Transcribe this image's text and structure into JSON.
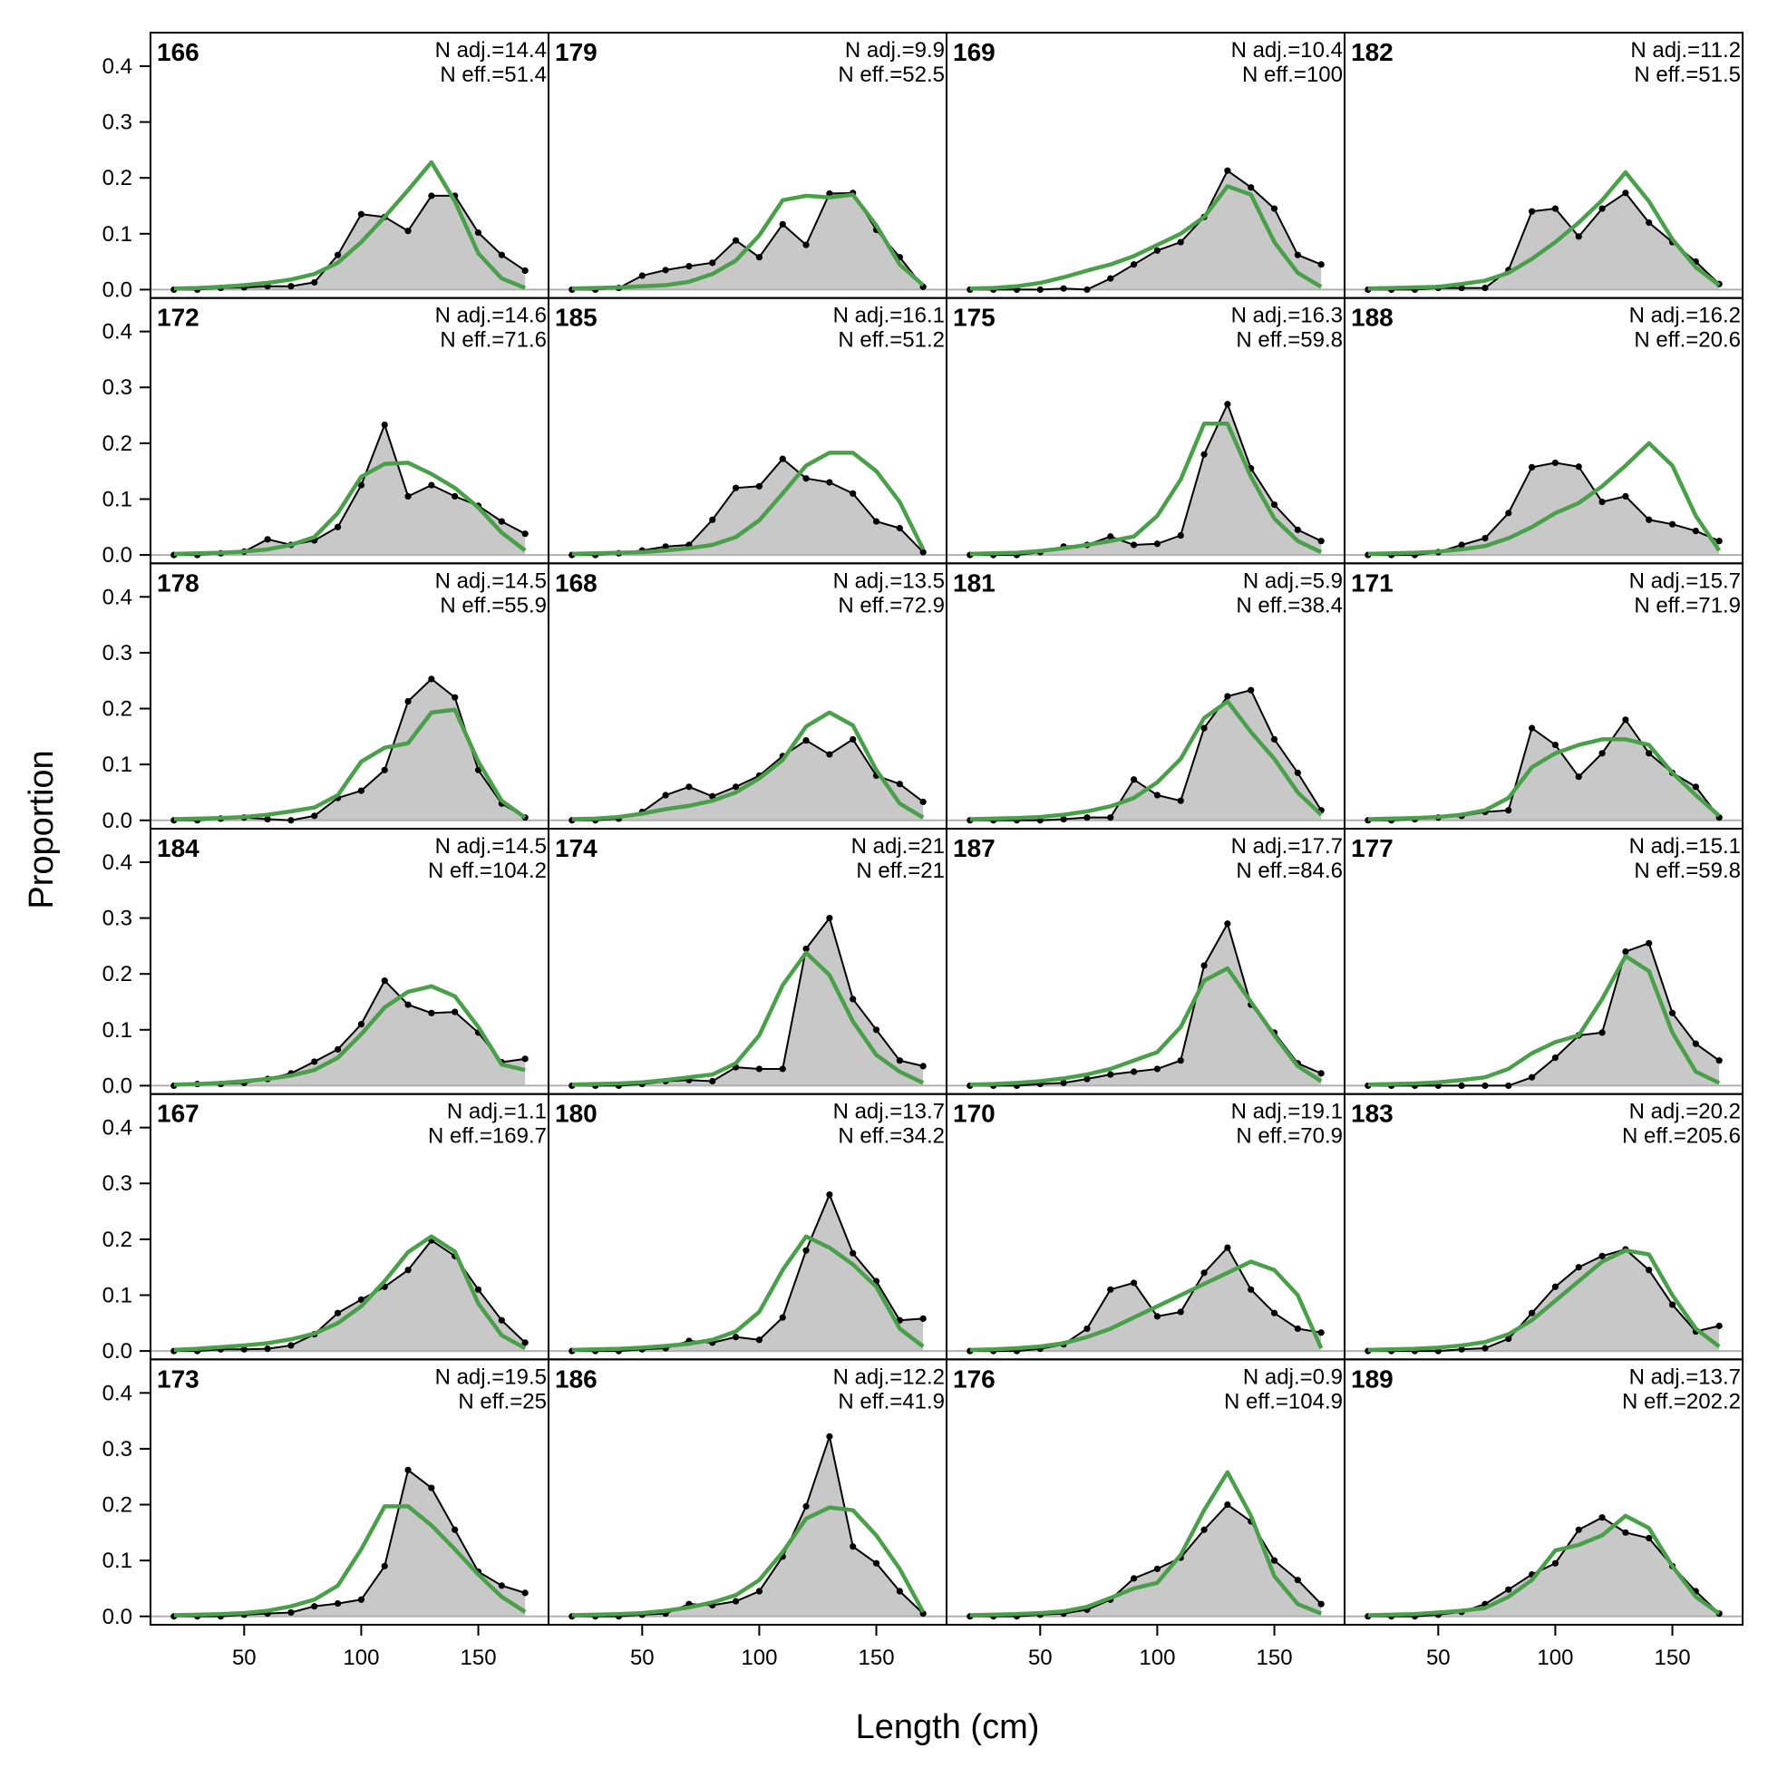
{
  "chart_data": {
    "type": "area",
    "xlabel": "Length (cm)",
    "ylabel": "Proportion",
    "xlim": [
      10,
      180
    ],
    "ylim": [
      -0.015,
      0.46
    ],
    "x_ticks": [
      50,
      100,
      150
    ],
    "y_ticks": [
      0.0,
      0.1,
      0.2,
      0.3,
      0.4
    ],
    "y_tick_labels": [
      "0.0",
      "0.1",
      "0.2",
      "0.3",
      "0.4"
    ],
    "x": [
      20,
      30,
      40,
      50,
      60,
      70,
      80,
      90,
      100,
      110,
      120,
      130,
      140,
      150,
      160,
      170
    ],
    "colors": {
      "observed_fill": "#c8c8c8",
      "observed_line": "#000000",
      "expected_line": "#4aa04a",
      "zero_line": "#b0b0b0"
    },
    "panels": [
      {
        "label": "166",
        "n_adj": "N adj.=14.4",
        "n_eff": "N eff.=51.4",
        "observed": [
          0,
          0,
          0.003,
          0.004,
          0.006,
          0.006,
          0.013,
          0.062,
          0.135,
          0.13,
          0.105,
          0.168,
          0.168,
          0.102,
          0.062,
          0.034
        ],
        "expected": [
          0.002,
          0.003,
          0.005,
          0.008,
          0.012,
          0.018,
          0.028,
          0.048,
          0.085,
          0.13,
          0.178,
          0.228,
          0.158,
          0.065,
          0.02,
          0.003
        ]
      },
      {
        "label": "172",
        "n_adj": "N adj.=14.6",
        "n_eff": "N eff.=71.6",
        "observed": [
          0,
          0,
          0.003,
          0.006,
          0.028,
          0.018,
          0.026,
          0.05,
          0.125,
          0.233,
          0.105,
          0.125,
          0.105,
          0.088,
          0.06,
          0.038
        ],
        "expected": [
          0.002,
          0.003,
          0.004,
          0.006,
          0.01,
          0.018,
          0.032,
          0.075,
          0.14,
          0.163,
          0.165,
          0.145,
          0.12,
          0.085,
          0.04,
          0.008
        ]
      },
      {
        "label": "178",
        "n_adj": "N adj.=14.5",
        "n_eff": "N eff.=55.9",
        "observed": [
          0,
          0,
          0.003,
          0.005,
          0.002,
          0,
          0.008,
          0.04,
          0.053,
          0.09,
          0.213,
          0.253,
          0.22,
          0.09,
          0.03,
          0.005
        ],
        "expected": [
          0.002,
          0.003,
          0.004,
          0.006,
          0.01,
          0.016,
          0.023,
          0.045,
          0.105,
          0.13,
          0.138,
          0.193,
          0.198,
          0.105,
          0.035,
          0.005
        ]
      },
      {
        "label": "184",
        "n_adj": "N adj.=14.5",
        "n_eff": "N eff.=104.2",
        "observed": [
          0,
          0.003,
          0.003,
          0.005,
          0.012,
          0.022,
          0.043,
          0.065,
          0.11,
          0.188,
          0.145,
          0.13,
          0.132,
          0.095,
          0.042,
          0.048
        ],
        "expected": [
          0.002,
          0.003,
          0.005,
          0.008,
          0.012,
          0.018,
          0.028,
          0.05,
          0.092,
          0.14,
          0.168,
          0.178,
          0.16,
          0.105,
          0.038,
          0.028
        ]
      },
      {
        "label": "167",
        "n_adj": "N adj.=1.1",
        "n_eff": "N eff.=169.7",
        "observed": [
          0,
          0,
          0.003,
          0.003,
          0.004,
          0.01,
          0.03,
          0.068,
          0.092,
          0.115,
          0.145,
          0.198,
          0.17,
          0.11,
          0.055,
          0.015
        ],
        "expected": [
          0.002,
          0.004,
          0.007,
          0.01,
          0.014,
          0.021,
          0.031,
          0.05,
          0.08,
          0.125,
          0.177,
          0.205,
          0.178,
          0.085,
          0.028,
          0.005
        ]
      },
      {
        "label": "173",
        "n_adj": "N adj.=19.5",
        "n_eff": "N eff.=25",
        "observed": [
          0,
          0,
          0,
          0.003,
          0.005,
          0.007,
          0.018,
          0.023,
          0.03,
          0.09,
          0.262,
          0.23,
          0.155,
          0.08,
          0.055,
          0.042
        ],
        "expected": [
          0.002,
          0.003,
          0.004,
          0.006,
          0.01,
          0.018,
          0.03,
          0.055,
          0.12,
          0.197,
          0.197,
          0.163,
          0.12,
          0.075,
          0.035,
          0.008
        ]
      },
      {
        "label": "179",
        "n_adj": "N adj.=9.9",
        "n_eff": "N eff.=52.5",
        "observed": [
          0,
          0,
          0.003,
          0.025,
          0.035,
          0.042,
          0.048,
          0.088,
          0.058,
          0.117,
          0.08,
          0.172,
          0.173,
          0.107,
          0.058,
          0.005
        ],
        "expected": [
          0.002,
          0.003,
          0.004,
          0.006,
          0.008,
          0.014,
          0.028,
          0.052,
          0.097,
          0.16,
          0.168,
          0.165,
          0.17,
          0.115,
          0.045,
          0.008
        ]
      },
      {
        "label": "185",
        "n_adj": "N adj.=16.1",
        "n_eff": "N eff.=51.2",
        "observed": [
          0,
          0,
          0.003,
          0.008,
          0.015,
          0.018,
          0.063,
          0.12,
          0.123,
          0.172,
          0.137,
          0.13,
          0.11,
          0.06,
          0.048,
          0.005
        ],
        "expected": [
          0.002,
          0.003,
          0.004,
          0.005,
          0.008,
          0.012,
          0.018,
          0.032,
          0.062,
          0.11,
          0.16,
          0.183,
          0.183,
          0.15,
          0.095,
          0.01
        ]
      },
      {
        "label": "168",
        "n_adj": "N adj.=13.5",
        "n_eff": "N eff.=72.9",
        "observed": [
          0,
          0,
          0.003,
          0.015,
          0.045,
          0.06,
          0.043,
          0.06,
          0.08,
          0.115,
          0.143,
          0.118,
          0.145,
          0.08,
          0.065,
          0.033
        ],
        "expected": [
          0.002,
          0.003,
          0.006,
          0.012,
          0.02,
          0.026,
          0.035,
          0.05,
          0.075,
          0.108,
          0.168,
          0.193,
          0.17,
          0.09,
          0.03,
          0.005
        ]
      },
      {
        "label": "174",
        "n_adj": "N adj.=21",
        "n_eff": "N eff.=21",
        "observed": [
          0,
          0,
          0,
          0.003,
          0.008,
          0.01,
          0.008,
          0.033,
          0.03,
          0.03,
          0.245,
          0.3,
          0.155,
          0.1,
          0.045,
          0.035
        ],
        "expected": [
          0.002,
          0.003,
          0.004,
          0.006,
          0.01,
          0.015,
          0.02,
          0.04,
          0.09,
          0.18,
          0.238,
          0.198,
          0.115,
          0.055,
          0.025,
          0.005
        ]
      },
      {
        "label": "180",
        "n_adj": "N adj.=13.7",
        "n_eff": "N eff.=34.2",
        "observed": [
          0,
          0,
          0,
          0.003,
          0.005,
          0.018,
          0.015,
          0.025,
          0.02,
          0.06,
          0.18,
          0.28,
          0.175,
          0.125,
          0.055,
          0.058
        ],
        "expected": [
          0.002,
          0.003,
          0.004,
          0.006,
          0.009,
          0.013,
          0.02,
          0.035,
          0.07,
          0.145,
          0.205,
          0.185,
          0.155,
          0.115,
          0.04,
          0.008
        ]
      },
      {
        "label": "186",
        "n_adj": "N adj.=12.2",
        "n_eff": "N eff.=41.9",
        "observed": [
          0,
          0,
          0,
          0.003,
          0.005,
          0.022,
          0.02,
          0.027,
          0.045,
          0.107,
          0.197,
          0.322,
          0.125,
          0.095,
          0.045,
          0.005
        ],
        "expected": [
          0.002,
          0.003,
          0.004,
          0.006,
          0.01,
          0.016,
          0.025,
          0.038,
          0.065,
          0.115,
          0.175,
          0.195,
          0.19,
          0.145,
          0.085,
          0.008
        ]
      },
      {
        "label": "169",
        "n_adj": "N adj.=10.4",
        "n_eff": "N eff.=100",
        "observed": [
          0,
          0,
          0,
          0,
          0.002,
          0,
          0.02,
          0.045,
          0.07,
          0.085,
          0.13,
          0.213,
          0.183,
          0.145,
          0.062,
          0.045
        ],
        "expected": [
          0.002,
          0.003,
          0.006,
          0.012,
          0.022,
          0.034,
          0.045,
          0.06,
          0.08,
          0.1,
          0.13,
          0.185,
          0.17,
          0.085,
          0.03,
          0.005
        ]
      },
      {
        "label": "175",
        "n_adj": "N adj.=16.3",
        "n_eff": "N eff.=59.8",
        "observed": [
          0,
          0,
          0,
          0.005,
          0.015,
          0.018,
          0.033,
          0.018,
          0.02,
          0.035,
          0.18,
          0.27,
          0.155,
          0.09,
          0.045,
          0.025
        ],
        "expected": [
          0.002,
          0.003,
          0.004,
          0.007,
          0.012,
          0.018,
          0.025,
          0.033,
          0.07,
          0.135,
          0.235,
          0.235,
          0.14,
          0.065,
          0.025,
          0.005
        ]
      },
      {
        "label": "181",
        "n_adj": "N adj.=5.9",
        "n_eff": "N eff.=38.4",
        "observed": [
          0,
          0,
          0,
          0,
          0.002,
          0.005,
          0.005,
          0.073,
          0.045,
          0.035,
          0.165,
          0.222,
          0.233,
          0.145,
          0.085,
          0.018
        ],
        "expected": [
          0.002,
          0.003,
          0.004,
          0.006,
          0.01,
          0.016,
          0.025,
          0.04,
          0.068,
          0.11,
          0.183,
          0.213,
          0.158,
          0.11,
          0.05,
          0.01
        ]
      },
      {
        "label": "187",
        "n_adj": "N adj.=17.7",
        "n_eff": "N eff.=84.6",
        "observed": [
          0,
          0,
          0,
          0.003,
          0.005,
          0.012,
          0.02,
          0.025,
          0.03,
          0.045,
          0.215,
          0.29,
          0.145,
          0.095,
          0.04,
          0.022
        ],
        "expected": [
          0.002,
          0.003,
          0.005,
          0.008,
          0.013,
          0.02,
          0.03,
          0.045,
          0.06,
          0.105,
          0.188,
          0.21,
          0.15,
          0.09,
          0.035,
          0.008
        ]
      },
      {
        "label": "170",
        "n_adj": "N adj.=19.1",
        "n_eff": "N eff.=70.9",
        "observed": [
          0,
          0,
          0,
          0.004,
          0.012,
          0.04,
          0.11,
          0.122,
          0.062,
          0.07,
          0.14,
          0.185,
          0.11,
          0.068,
          0.04,
          0.033
        ],
        "expected": [
          0.002,
          0.003,
          0.005,
          0.008,
          0.014,
          0.025,
          0.04,
          0.06,
          0.08,
          0.1,
          0.12,
          0.14,
          0.16,
          0.145,
          0.1,
          0.005
        ]
      },
      {
        "label": "176",
        "n_adj": "N adj.=0.9",
        "n_eff": "N eff.=104.9",
        "observed": [
          0,
          0,
          0,
          0.003,
          0.005,
          0.012,
          0.03,
          0.068,
          0.085,
          0.105,
          0.155,
          0.2,
          0.17,
          0.1,
          0.065,
          0.022
        ],
        "expected": [
          0.002,
          0.003,
          0.004,
          0.006,
          0.009,
          0.017,
          0.033,
          0.05,
          0.06,
          0.11,
          0.19,
          0.258,
          0.18,
          0.072,
          0.022,
          0.005
        ]
      },
      {
        "label": "182",
        "n_adj": "N adj.=11.2",
        "n_eff": "N eff.=51.5",
        "observed": [
          0,
          0,
          0,
          0.003,
          0.003,
          0.003,
          0.035,
          0.14,
          0.145,
          0.095,
          0.145,
          0.173,
          0.12,
          0.085,
          0.05,
          0.01
        ],
        "expected": [
          0.002,
          0.003,
          0.004,
          0.005,
          0.01,
          0.016,
          0.03,
          0.055,
          0.085,
          0.12,
          0.16,
          0.21,
          0.158,
          0.09,
          0.04,
          0.008
        ]
      },
      {
        "label": "188",
        "n_adj": "N adj.=16.2",
        "n_eff": "N eff.=20.6",
        "observed": [
          0,
          0,
          0,
          0.005,
          0.018,
          0.03,
          0.075,
          0.157,
          0.165,
          0.158,
          0.095,
          0.105,
          0.063,
          0.055,
          0.043,
          0.025
        ],
        "expected": [
          0.002,
          0.003,
          0.004,
          0.006,
          0.01,
          0.016,
          0.03,
          0.05,
          0.075,
          0.093,
          0.123,
          0.16,
          0.2,
          0.16,
          0.07,
          0.008
        ]
      },
      {
        "label": "171",
        "n_adj": "N adj.=15.7",
        "n_eff": "N eff.=71.9",
        "observed": [
          0,
          0,
          0.002,
          0.005,
          0.008,
          0.015,
          0.018,
          0.165,
          0.135,
          0.078,
          0.12,
          0.18,
          0.12,
          0.085,
          0.06,
          0.005
        ],
        "expected": [
          0.002,
          0.003,
          0.004,
          0.006,
          0.01,
          0.018,
          0.04,
          0.095,
          0.12,
          0.135,
          0.145,
          0.145,
          0.135,
          0.085,
          0.045,
          0.008
        ]
      },
      {
        "label": "177",
        "n_adj": "N adj.=15.1",
        "n_eff": "N eff.=59.8",
        "observed": [
          0,
          0,
          0,
          0,
          0,
          0,
          0,
          0.015,
          0.05,
          0.09,
          0.095,
          0.24,
          0.255,
          0.13,
          0.075,
          0.045
        ],
        "expected": [
          0.002,
          0.003,
          0.004,
          0.006,
          0.01,
          0.015,
          0.03,
          0.058,
          0.078,
          0.09,
          0.155,
          0.232,
          0.205,
          0.095,
          0.025,
          0.005
        ]
      },
      {
        "label": "183",
        "n_adj": "N adj.=20.2",
        "n_eff": "N eff.=205.6",
        "observed": [
          0,
          0,
          0,
          0,
          0.003,
          0.005,
          0.022,
          0.068,
          0.115,
          0.15,
          0.17,
          0.182,
          0.145,
          0.083,
          0.035,
          0.045
        ],
        "expected": [
          0.002,
          0.003,
          0.004,
          0.006,
          0.01,
          0.016,
          0.03,
          0.055,
          0.09,
          0.125,
          0.16,
          0.18,
          0.173,
          0.1,
          0.04,
          0.008
        ]
      },
      {
        "label": "189",
        "n_adj": "N adj.=13.7",
        "n_eff": "N eff.=202.2",
        "observed": [
          0,
          0,
          0,
          0.003,
          0.008,
          0.022,
          0.048,
          0.075,
          0.095,
          0.155,
          0.177,
          0.15,
          0.14,
          0.09,
          0.045,
          0.005
        ],
        "expected": [
          0.002,
          0.003,
          0.004,
          0.007,
          0.01,
          0.015,
          0.035,
          0.065,
          0.118,
          0.128,
          0.145,
          0.18,
          0.158,
          0.09,
          0.035,
          0.005
        ]
      }
    ]
  }
}
